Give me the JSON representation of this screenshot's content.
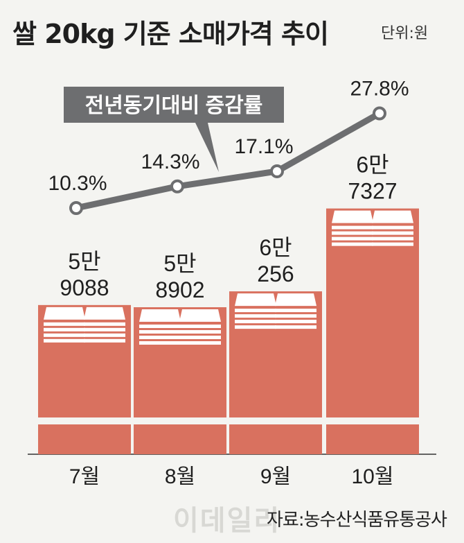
{
  "header": {
    "title": "쌀 20kg 기준 소매가격 추이",
    "unit": "단위:원"
  },
  "footer": {
    "source": "자료:농수산식품유통공사",
    "watermark": "이데일리"
  },
  "colors": {
    "bar": "#d9715f",
    "line": "#6d6e70",
    "callout": "#6d6e70",
    "background": "#f4f4f1"
  },
  "chart_data": {
    "type": "bar",
    "categories": [
      "7월",
      "8월",
      "9월",
      "10월"
    ],
    "series": [
      {
        "values": [
          59088,
          58902,
          60256,
          67327
        ]
      },
      {
        "values": [
          10.3,
          14.3,
          17.1,
          27.8
        ]
      }
    ],
    "value_labels": [
      [
        "5만",
        "9088"
      ],
      [
        "5만",
        "8902"
      ],
      [
        "6만",
        "256"
      ],
      [
        "6만",
        "7327"
      ]
    ],
    "rate_labels": [
      "10.3%",
      "14.3%",
      "17.1%",
      "27.8%"
    ],
    "line_legend": "전년동기대비 증감률",
    "grid": false
  }
}
